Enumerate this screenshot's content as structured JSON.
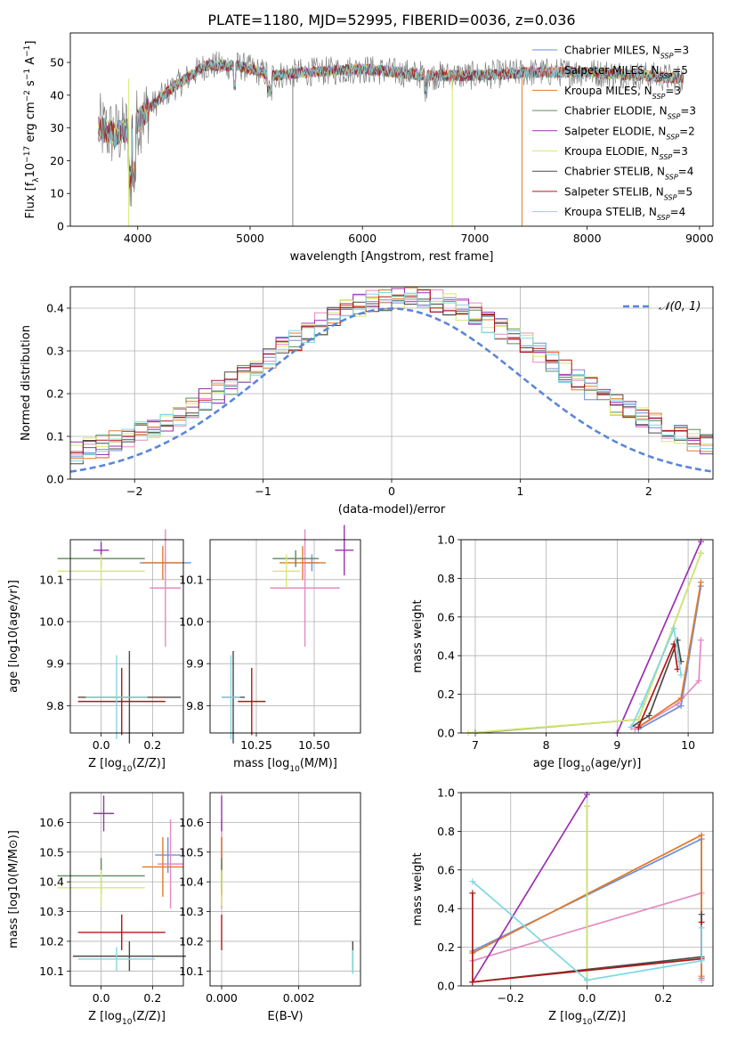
{
  "figure_title": "PLATE=1180, MJD=52995, FIBERID=0036, z=0.036",
  "series": [
    {
      "name": "Chabrier MILES, N$_{SSP}$=3",
      "label_main": "Chabrier MILES, N",
      "label_sub": "SSP",
      "label_tail": "=3",
      "color": "#6f8fd8"
    },
    {
      "name": "Salpeter MILES, N$_{SSP}$=5",
      "label_main": "Salpeter MILES, N",
      "label_sub": "SSP",
      "label_tail": "=5",
      "color": "#e58ac2"
    },
    {
      "name": "Kroupa MILES, N$_{SSP}$=3",
      "label_main": "Kroupa MILES, N",
      "label_sub": "SSP",
      "label_tail": "=3",
      "color": "#e07b2a"
    },
    {
      "name": "Chabrier ELODIE, N$_{SSP}$=3",
      "label_main": "Chabrier ELODIE, N",
      "label_sub": "SSP",
      "label_tail": "=3",
      "color": "#5d8a5d"
    },
    {
      "name": "Salpeter ELODIE, N$_{SSP}$=2",
      "label_main": "Salpeter ELODIE, N",
      "label_sub": "SSP",
      "label_tail": "=2",
      "color": "#9b30b0"
    },
    {
      "name": "Kroupa ELODIE, N$_{SSP}$=3",
      "label_main": "Kroupa ELODIE, N",
      "label_sub": "SSP",
      "label_tail": "=3",
      "color": "#d8e870"
    },
    {
      "name": "Chabrier STELIB, N$_{SSP}$=4",
      "label_main": "Chabrier STELIB, N",
      "label_sub": "SSP",
      "label_tail": "=4",
      "color": "#4a4a4a"
    },
    {
      "name": "Salpeter STELIB, N$_{SSP}$=5",
      "label_main": "Salpeter STELIB, N",
      "label_sub": "SSP",
      "label_tail": "=5",
      "color": "#b01818"
    },
    {
      "name": "Kroupa STELIB, N$_{SSP}$=4",
      "label_main": "Kroupa STELIB, N",
      "label_sub": "SSP",
      "label_tail": "=4",
      "color": "#7fd8e0"
    }
  ],
  "chart_data": [
    {
      "id": "spectrum",
      "type": "line",
      "xlabel": "wavelength [Angstrom, rest frame]",
      "ylabel": "Flux [f_λ10^-17 erg cm^-2 s^-1 A^-1]",
      "xlim": [
        3400,
        9120
      ],
      "ylim": [
        0,
        59
      ],
      "xticks": [
        4000,
        5000,
        6000,
        7000,
        8000,
        9000
      ],
      "yticks": [
        0,
        10,
        20,
        30,
        40,
        50
      ],
      "x_range": [
        3650,
        8860
      ],
      "profile": [
        [
          3650,
          30
        ],
        [
          3800,
          28
        ],
        [
          3950,
          30
        ],
        [
          4100,
          36
        ],
        [
          4300,
          42
        ],
        [
          4600,
          49
        ],
        [
          4900,
          49
        ],
        [
          5200,
          46
        ],
        [
          5500,
          47
        ],
        [
          6000,
          48
        ],
        [
          6600,
          46
        ],
        [
          7000,
          46
        ],
        [
          7500,
          47
        ],
        [
          8000,
          47
        ],
        [
          8500,
          46
        ],
        [
          8860,
          45
        ]
      ],
      "legend": "upper right",
      "grid": false
    },
    {
      "id": "residuals",
      "type": "step",
      "xlabel": "(data-model)/error",
      "ylabel": "Normed distribution",
      "xlim": [
        -2.5,
        2.5
      ],
      "ylim": [
        0,
        0.45
      ],
      "xticks": [
        -2,
        -1,
        0,
        1,
        2
      ],
      "yticks": [
        0,
        0.1,
        0.2,
        0.3,
        0.4
      ],
      "reference_curve": {
        "name": "N(0,1)",
        "label": "𝒩(0, 1)",
        "mu": 0,
        "sigma": 1,
        "color": "#5b86d8"
      },
      "legend": "upper right",
      "grid": true
    },
    {
      "id": "age_vs_Z",
      "type": "scatter",
      "xlabel": "Z [log10(Z/Z⊙)]",
      "ylabel": "age [log10(age/yr)]",
      "xlim": [
        -0.12,
        0.32
      ],
      "ylim": [
        9.735,
        10.195
      ],
      "xticks": [
        0.0,
        0.2
      ],
      "yticks": [
        9.8,
        9.9,
        10.0,
        10.1
      ],
      "points": [
        {
          "series": 0,
          "x": 0.25,
          "y": 10.14,
          "xerr": 0.1,
          "yerr": 0.02
        },
        {
          "series": 1,
          "x": 0.25,
          "y": 10.08,
          "xerr": 0.06,
          "yerr": 0.14
        },
        {
          "series": 2,
          "x": 0.24,
          "y": 10.14,
          "xerr": 0.08,
          "yerr": 0.04
        },
        {
          "series": 3,
          "x": 0.0,
          "y": 10.15,
          "xerr": 0.17,
          "yerr": 0.02
        },
        {
          "series": 4,
          "x": 0.0,
          "y": 10.17,
          "xerr": 0.03,
          "yerr": 0.02
        },
        {
          "series": 5,
          "x": 0.0,
          "y": 10.12,
          "xerr": 0.17,
          "yerr": 0.04
        },
        {
          "series": 6,
          "x": 0.11,
          "y": 9.82,
          "xerr": 0.2,
          "yerr": 0.11
        },
        {
          "series": 7,
          "x": 0.08,
          "y": 9.81,
          "xerr": 0.17,
          "yerr": 0.08
        },
        {
          "series": 8,
          "x": 0.06,
          "y": 9.82,
          "xerr": 0.12,
          "yerr": 0.1
        }
      ],
      "grid": true
    },
    {
      "id": "age_vs_mass",
      "type": "scatter",
      "xlabel": "mass [log10(M/M⊙)]",
      "ylabel": "",
      "xlim": [
        10.05,
        10.7
      ],
      "ylim": [
        9.735,
        10.195
      ],
      "xticks": [
        10.25,
        10.5
      ],
      "yticks": [
        9.8,
        9.9,
        10.0,
        10.1
      ],
      "points": [
        {
          "series": 0,
          "x": 10.49,
          "y": 10.14,
          "xerr": 0.03,
          "yerr": 0.02
        },
        {
          "series": 1,
          "x": 10.46,
          "y": 10.08,
          "xerr": 0.15,
          "yerr": 0.14
        },
        {
          "series": 2,
          "x": 10.45,
          "y": 10.14,
          "xerr": 0.1,
          "yerr": 0.04
        },
        {
          "series": 3,
          "x": 10.42,
          "y": 10.15,
          "xerr": 0.1,
          "yerr": 0.02
        },
        {
          "series": 4,
          "x": 10.63,
          "y": 10.17,
          "xerr": 0.04,
          "yerr": 0.06
        },
        {
          "series": 5,
          "x": 10.38,
          "y": 10.12,
          "xerr": 0.06,
          "yerr": 0.04
        },
        {
          "series": 6,
          "x": 10.15,
          "y": 9.82,
          "xerr": 0.05,
          "yerr": 0.11
        },
        {
          "series": 7,
          "x": 10.23,
          "y": 9.81,
          "xerr": 0.06,
          "yerr": 0.08
        },
        {
          "series": 8,
          "x": 10.14,
          "y": 9.82,
          "xerr": 0.04,
          "yerr": 0.1
        }
      ],
      "grid": true
    },
    {
      "id": "massweight_vs_age",
      "type": "line",
      "xlabel": "age [log10(age/yr)]",
      "ylabel": "mass weight",
      "xlim": [
        6.8,
        10.35
      ],
      "ylim": [
        0,
        1
      ],
      "xticks": [
        7,
        8,
        9,
        10
      ],
      "yticks": [
        0,
        0.2,
        0.4,
        0.6,
        0.8,
        1.0
      ],
      "lines": [
        {
          "series": 0,
          "x": [
            9.3,
            9.9,
            10.18
          ],
          "y": [
            0.02,
            0.14,
            0.76
          ]
        },
        {
          "series": 1,
          "x": [
            9.25,
            9.85,
            10.15,
            10.18
          ],
          "y": [
            0.02,
            0.15,
            0.27,
            0.48
          ]
        },
        {
          "series": 2,
          "x": [
            9.3,
            9.9,
            10.18
          ],
          "y": [
            0.03,
            0.18,
            0.78
          ]
        },
        {
          "series": 3,
          "x": [
            7.0,
            9.3,
            10.18
          ],
          "y": [
            0.0,
            0.07,
            0.93
          ]
        },
        {
          "series": 4,
          "x": [
            9.0,
            10.18
          ],
          "y": [
            0.0,
            0.99
          ]
        },
        {
          "series": 5,
          "x": [
            6.9,
            9.3,
            10.18
          ],
          "y": [
            0.0,
            0.07,
            0.93
          ]
        },
        {
          "series": 6,
          "x": [
            9.2,
            9.45,
            9.85,
            9.9
          ],
          "y": [
            0.03,
            0.09,
            0.48,
            0.37
          ]
        },
        {
          "series": 7,
          "x": [
            9.3,
            9.8,
            9.85
          ],
          "y": [
            0.03,
            0.46,
            0.33
          ]
        },
        {
          "series": 8,
          "x": [
            9.2,
            9.35,
            9.8,
            9.9
          ],
          "y": [
            0.03,
            0.15,
            0.54,
            0.3
          ]
        }
      ],
      "grid": true
    },
    {
      "id": "mass_vs_Z",
      "type": "scatter",
      "xlabel": "Z [log10(Z/Z⊙)]",
      "ylabel": "mass [log10(M/M⊙)]",
      "xlim": [
        -0.12,
        0.32
      ],
      "ylim": [
        10.05,
        10.7
      ],
      "xticks": [
        0.0,
        0.2
      ],
      "yticks": [
        10.1,
        10.2,
        10.3,
        10.4,
        10.5,
        10.6
      ],
      "points": [
        {
          "series": 0,
          "x": 0.26,
          "y": 10.49,
          "xerr": 0.05,
          "yerr": 0.06
        },
        {
          "series": 1,
          "x": 0.27,
          "y": 10.46,
          "xerr": 0.05,
          "yerr": 0.15
        },
        {
          "series": 2,
          "x": 0.24,
          "y": 10.45,
          "xerr": 0.08,
          "yerr": 0.1
        },
        {
          "series": 3,
          "x": 0.0,
          "y": 10.42,
          "xerr": 0.17,
          "yerr": 0.06
        },
        {
          "series": 4,
          "x": 0.01,
          "y": 10.63,
          "xerr": 0.04,
          "yerr": 0.06
        },
        {
          "series": 5,
          "x": 0.0,
          "y": 10.38,
          "xerr": 0.17,
          "yerr": 0.06
        },
        {
          "series": 6,
          "x": 0.11,
          "y": 10.15,
          "xerr": 0.22,
          "yerr": 0.05
        },
        {
          "series": 7,
          "x": 0.08,
          "y": 10.23,
          "xerr": 0.17,
          "yerr": 0.06
        },
        {
          "series": 8,
          "x": 0.06,
          "y": 10.14,
          "xerr": 0.15,
          "yerr": 0.04
        }
      ],
      "grid": true
    },
    {
      "id": "mass_vs_ebv",
      "type": "scatter",
      "xlabel": "E(B-V)",
      "ylabel": "",
      "xlim": [
        -0.0003,
        0.0036
      ],
      "ylim": [
        10.05,
        10.7
      ],
      "xticks": [
        0.0,
        0.002
      ],
      "yticks": [
        10.1,
        10.2,
        10.3,
        10.4,
        10.5,
        10.6
      ],
      "points": [
        {
          "series": 0,
          "x": 0.0,
          "y": 10.49,
          "xerr": 0.0,
          "yerr": 0.06
        },
        {
          "series": 1,
          "x": 0.0,
          "y": 10.46,
          "xerr": 0.0,
          "yerr": 0.15
        },
        {
          "series": 2,
          "x": 0.0,
          "y": 10.45,
          "xerr": 0.0,
          "yerr": 0.1
        },
        {
          "series": 3,
          "x": 0.0,
          "y": 10.42,
          "xerr": 0.0,
          "yerr": 0.06
        },
        {
          "series": 4,
          "x": 0.0,
          "y": 10.63,
          "xerr": 0.0,
          "yerr": 0.06
        },
        {
          "series": 5,
          "x": 0.0,
          "y": 10.38,
          "xerr": 0.0,
          "yerr": 0.06
        },
        {
          "series": 6,
          "x": 0.0034,
          "y": 10.15,
          "xerr": 0.0,
          "yerr": 0.05
        },
        {
          "series": 7,
          "x": 0.0,
          "y": 10.23,
          "xerr": 0.0,
          "yerr": 0.06
        },
        {
          "series": 8,
          "x": 0.0034,
          "y": 10.13,
          "xerr": 0.0,
          "yerr": 0.04
        }
      ],
      "grid": true
    },
    {
      "id": "massweight_vs_Z",
      "type": "line",
      "xlabel": "Z [log10(Z/Z⊙)]",
      "ylabel": "mass weight",
      "xlim": [
        -0.33,
        0.33
      ],
      "ylim": [
        0,
        1
      ],
      "xticks": [
        -0.2,
        0.0,
        0.2
      ],
      "yticks": [
        0,
        0.2,
        0.4,
        0.6,
        0.8,
        1.0
      ],
      "lines": [
        {
          "series": 0,
          "x": [
            -0.3,
            0.3,
            0.3
          ],
          "y": [
            0.18,
            0.76,
            0.04
          ]
        },
        {
          "series": 1,
          "x": [
            -0.3,
            0.3,
            0.3
          ],
          "y": [
            0.13,
            0.48,
            0.03
          ]
        },
        {
          "series": 2,
          "x": [
            -0.3,
            0.3,
            0.3
          ],
          "y": [
            0.17,
            0.78,
            0.05
          ]
        },
        {
          "series": 3,
          "x": [
            0.0,
            0.0,
            0.0
          ],
          "y": [
            0.03,
            0.93,
            0.03
          ]
        },
        {
          "series": 4,
          "x": [
            -0.3,
            0.0
          ],
          "y": [
            0.02,
            0.99
          ]
        },
        {
          "series": 5,
          "x": [
            0.0,
            0.0,
            0.0
          ],
          "y": [
            0.03,
            0.93,
            0.03
          ]
        },
        {
          "series": 6,
          "x": [
            -0.3,
            0.3,
            0.3
          ],
          "y": [
            0.02,
            0.15,
            0.37
          ]
        },
        {
          "series": 7,
          "x": [
            -0.3,
            -0.3,
            0.3,
            0.3
          ],
          "y": [
            0.48,
            0.02,
            0.14,
            0.33
          ]
        },
        {
          "series": 8,
          "x": [
            -0.3,
            0.0,
            0.3,
            0.3
          ],
          "y": [
            0.54,
            0.03,
            0.13,
            0.3
          ]
        }
      ],
      "grid": true
    }
  ]
}
